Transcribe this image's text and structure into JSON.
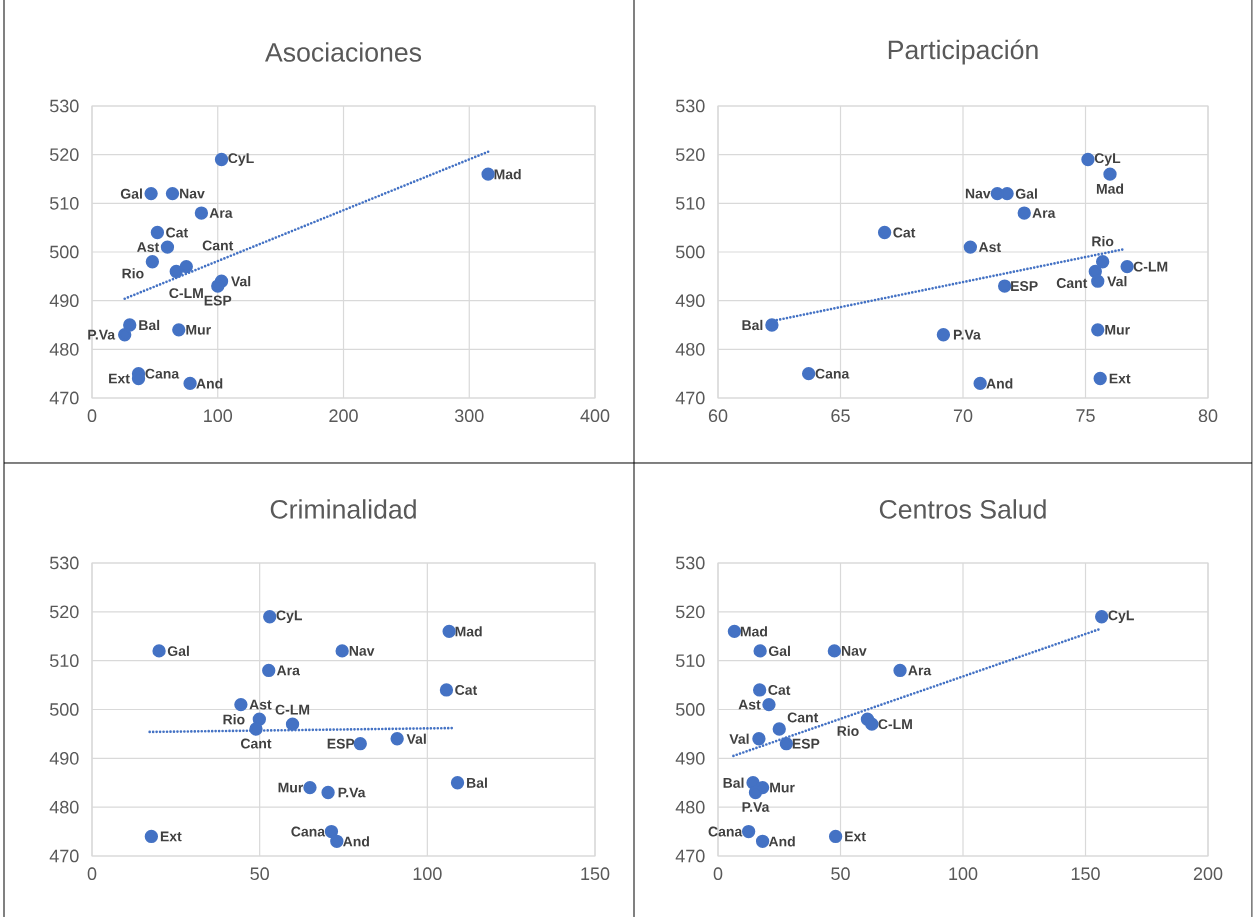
{
  "chart_data": [
    {
      "type": "scatter",
      "title": "Asociaciones",
      "grid": true,
      "xlim": [
        0,
        400
      ],
      "xticks": [
        0,
        100,
        200,
        300,
        400
      ],
      "ylim": [
        470,
        530
      ],
      "yticks": [
        470,
        480,
        490,
        500,
        510,
        520,
        530
      ],
      "series": [
        {
          "type": "scatter",
          "marker": "circle",
          "color": "#4472c4",
          "x": [
            103,
            315,
            47,
            64,
            87,
            52,
            60,
            48,
            75,
            67,
            103,
            100,
            30,
            69,
            26,
            37,
            37,
            78
          ],
          "values": [
            519,
            516,
            512,
            512,
            508,
            504,
            501,
            498,
            497,
            496,
            494,
            493,
            485,
            484,
            483,
            475,
            474,
            473
          ],
          "value_labels": [
            "CyL",
            "Mad",
            "Gal",
            "Nav",
            "Ara",
            "Cat",
            "Ast",
            "Rio",
            "C-LM",
            "Cant",
            "Val",
            "ESP",
            "Bal",
            "Mur",
            "P.Va",
            "Cana",
            "Ext",
            "And"
          ]
        },
        {
          "type": "line",
          "marker": "none",
          "line_style": "dotted",
          "color": "#4472c4",
          "x": [
            26,
            315
          ],
          "values": [
            490.4,
            520.6
          ]
        }
      ]
    },
    {
      "type": "scatter",
      "title": "Participación",
      "grid": true,
      "xlim": [
        60,
        80
      ],
      "xticks": [
        60,
        65,
        70,
        75,
        80
      ],
      "ylim": [
        470,
        530
      ],
      "yticks": [
        470,
        480,
        490,
        500,
        510,
        520,
        530
      ],
      "series": [
        {
          "type": "scatter",
          "marker": "circle",
          "color": "#4472c4",
          "x": [
            75.1,
            76.0,
            71.8,
            71.4,
            72.5,
            66.8,
            70.3,
            75.7,
            76.7,
            75.4,
            75.5,
            71.7,
            62.2,
            75.5,
            69.2,
            63.7,
            75.6,
            70.7
          ],
          "values": [
            519,
            516,
            512,
            512,
            508,
            504,
            501,
            498,
            497,
            496,
            494,
            493,
            485,
            484,
            483,
            475,
            474,
            473
          ],
          "value_labels": [
            "CyL",
            "Mad",
            "Gal",
            "Nav",
            "Ara",
            "Cat",
            "Ast",
            "Rio",
            "C-LM",
            "Cant",
            "Val",
            "ESP",
            "Bal",
            "Mur",
            "P.Va",
            "Cana",
            "Ext",
            "And"
          ]
        },
        {
          "type": "line",
          "marker": "none",
          "line_style": "dotted",
          "color": "#4472c4",
          "x": [
            62.4,
            76.5
          ],
          "values": [
            486.0,
            500.5
          ]
        }
      ]
    },
    {
      "type": "scatter",
      "title": "Criminalidad",
      "grid": true,
      "xlim": [
        0,
        150
      ],
      "xticks": [
        0,
        50,
        100,
        150
      ],
      "ylim": [
        470,
        530
      ],
      "yticks": [
        470,
        480,
        490,
        500,
        510,
        520,
        530
      ],
      "series": [
        {
          "type": "scatter",
          "marker": "circle",
          "color": "#4472c4",
          "x": [
            53,
            106.5,
            20,
            74.6,
            52.7,
            105.7,
            44.4,
            49.9,
            59.8,
            48.9,
            91,
            80,
            109,
            65,
            70.4,
            71.4,
            17.7,
            73
          ],
          "values": [
            519,
            516,
            512,
            512,
            508,
            504,
            501,
            498,
            497,
            496,
            494,
            493,
            485,
            484,
            483,
            475,
            474,
            473
          ],
          "value_labels": [
            "CyL",
            "Mad",
            "Gal",
            "Nav",
            "Ara",
            "Cat",
            "Ast",
            "Rio",
            "C-LM",
            "Cant",
            "Val",
            "ESP",
            "Bal",
            "Mur",
            "P.Va",
            "Cana",
            "Ext",
            "And"
          ]
        },
        {
          "type": "line",
          "marker": "none",
          "line_style": "dotted",
          "color": "#4472c4",
          "x": [
            17.2,
            108.3
          ],
          "values": [
            495.4,
            496.2
          ]
        }
      ]
    },
    {
      "type": "scatter",
      "title": "Centros Salud",
      "grid": true,
      "xlim": [
        0,
        200
      ],
      "xticks": [
        0,
        50,
        100,
        150,
        200
      ],
      "ylim": [
        470,
        530
      ],
      "yticks": [
        470,
        480,
        490,
        500,
        510,
        520,
        530
      ],
      "series": [
        {
          "type": "scatter",
          "marker": "circle",
          "color": "#4472c4",
          "x": [
            156.6,
            6.7,
            17.2,
            47.5,
            74.3,
            17,
            20.8,
            61,
            62.8,
            25,
            16.7,
            27.9,
            14.3,
            18.2,
            15.3,
            12.5,
            48,
            18.2
          ],
          "values": [
            519,
            516,
            512,
            512,
            508,
            504,
            501,
            498,
            497,
            496,
            494,
            493,
            485,
            484,
            483,
            475,
            474,
            473
          ],
          "value_labels": [
            "CyL",
            "Mad",
            "Gal",
            "Nav",
            "Ara",
            "Cat",
            "Ast",
            "Rio",
            "C-LM",
            "Cant",
            "Val",
            "ESP",
            "Bal",
            "Mur",
            "P.Va",
            "Cana",
            "Ext",
            "And"
          ]
        },
        {
          "type": "line",
          "marker": "none",
          "line_style": "dotted",
          "color": "#4472c4",
          "x": [
            6.3,
            156.6
          ],
          "values": [
            490.5,
            516.6
          ]
        }
      ]
    }
  ]
}
